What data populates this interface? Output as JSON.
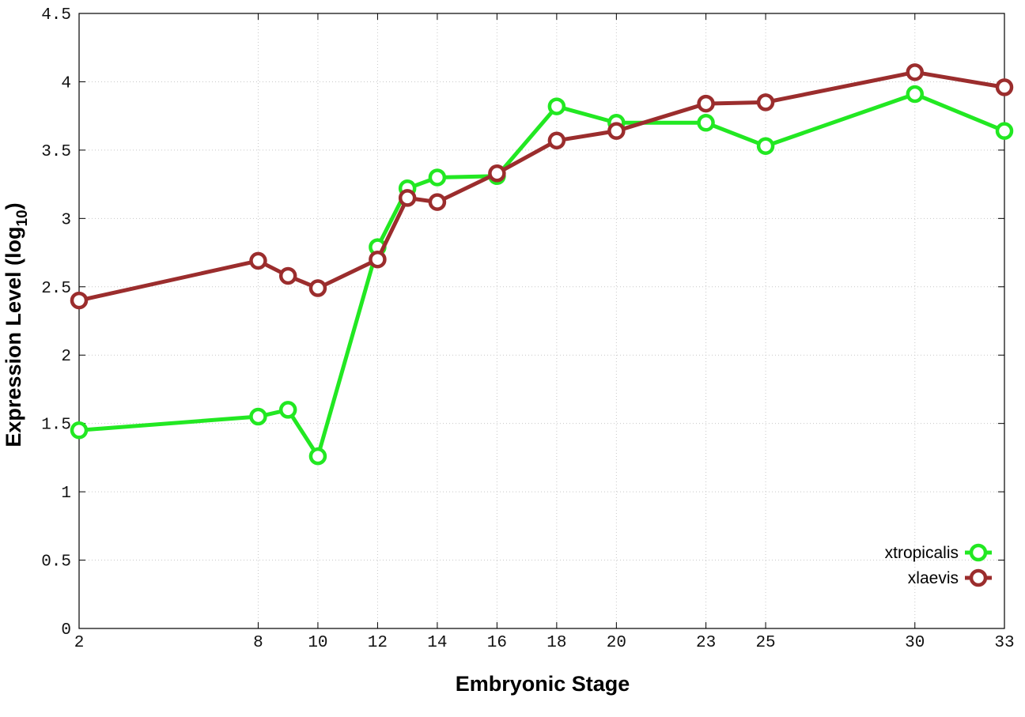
{
  "chart_data": {
    "type": "line",
    "xlabel": "Embryonic Stage",
    "ylabel_main": "Expression Level (log",
    "ylabel_sub": "10",
    "ylabel_close": ")",
    "ylim": [
      0,
      4.5
    ],
    "yticks": [
      "0",
      "0.5",
      "1",
      "1.5",
      "2",
      "2.5",
      "3",
      "3.5",
      "4",
      "4.5"
    ],
    "x": [
      "2",
      "8",
      "9",
      "10",
      "12",
      "13",
      "14",
      "16",
      "18",
      "20",
      "23",
      "25",
      "30",
      "33"
    ],
    "xtick_labels": [
      "2",
      "8",
      "10",
      "12",
      "14",
      "16",
      "18",
      "20",
      "23",
      "25",
      "30",
      "33"
    ],
    "grid": true,
    "legend_position": "bottom-right",
    "series": [
      {
        "name": "xtropicalis",
        "color": "#22e822",
        "values": [
          1.45,
          1.55,
          1.6,
          1.26,
          2.79,
          3.22,
          3.3,
          3.31,
          3.82,
          3.7,
          3.7,
          3.53,
          3.91,
          3.64
        ]
      },
      {
        "name": "xlaevis",
        "color": "#9b2d2d",
        "values": [
          2.4,
          2.69,
          2.58,
          2.49,
          2.7,
          3.15,
          3.12,
          3.33,
          3.57,
          3.64,
          3.84,
          3.85,
          4.07,
          3.96
        ]
      }
    ]
  }
}
